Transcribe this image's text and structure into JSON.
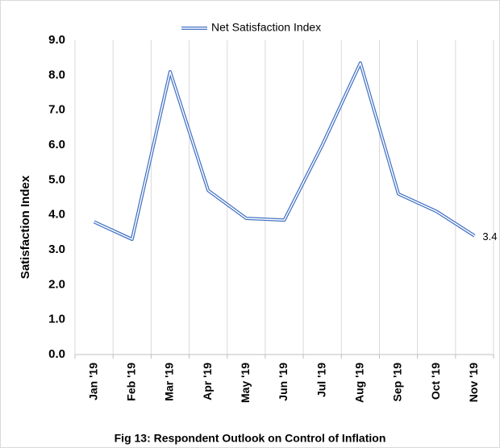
{
  "chart_data": {
    "type": "line",
    "title": "Fig 13: Respondent Outlook on Control of Inflation",
    "y_label": "Satisfaction Index",
    "categories": [
      "Jan '19",
      "Feb '19",
      "Mar '19",
      "Apr '19",
      "May '19",
      "Jun '19",
      "Jul '19",
      "Aug '19",
      "Sep '19",
      "Oct '19",
      "Nov '19"
    ],
    "series": [
      {
        "name": "Net Satisfaction Index",
        "color": "#4472c4",
        "values": [
          3.8,
          3.3,
          8.1,
          4.7,
          3.9,
          3.85,
          6.0,
          8.35,
          4.6,
          4.1,
          3.4
        ]
      }
    ],
    "ylim": [
      0,
      9
    ],
    "yticks": [
      {
        "value": 0,
        "label": "0.0"
      },
      {
        "value": 1,
        "label": "1.0"
      },
      {
        "value": 2,
        "label": "2.0"
      },
      {
        "value": 3,
        "label": "3.0"
      },
      {
        "value": 4,
        "label": "4.0"
      },
      {
        "value": 5,
        "label": "5.0"
      },
      {
        "value": 6,
        "label": "6.0"
      },
      {
        "value": 7,
        "label": "7.0"
      },
      {
        "value": 8,
        "label": "8.0"
      },
      {
        "value": 9,
        "label": "9.0"
      }
    ],
    "grid": "x",
    "legend": "top"
  }
}
